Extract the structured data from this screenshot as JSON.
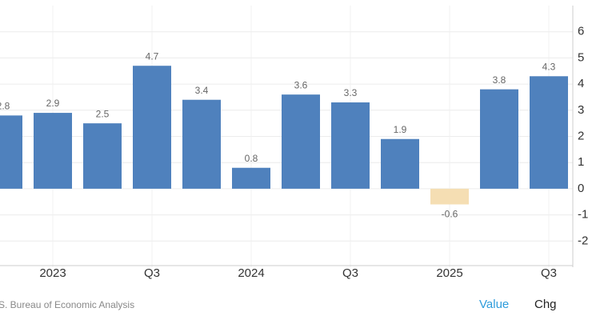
{
  "chart_data": {
    "type": "bar",
    "categories": [
      null,
      "2023",
      null,
      "Q3",
      null,
      "2024",
      null,
      "Q3",
      null,
      "2025",
      null,
      "Q3"
    ],
    "values": [
      2.8,
      2.9,
      2.5,
      4.7,
      3.4,
      0.8,
      3.6,
      3.3,
      1.9,
      -0.6,
      3.8,
      4.3
    ],
    "color": "#4f81bd",
    "negative_color": "#f5deb3",
    "ylim": [
      -3,
      7
    ],
    "yticks": [
      -2,
      -1,
      0,
      1,
      2,
      3,
      4,
      5,
      6
    ],
    "grid": true
  },
  "footer": {
    "source": "U.S. Bureau of Economic Analysis",
    "tabs": [
      "Value",
      "Chg"
    ]
  }
}
